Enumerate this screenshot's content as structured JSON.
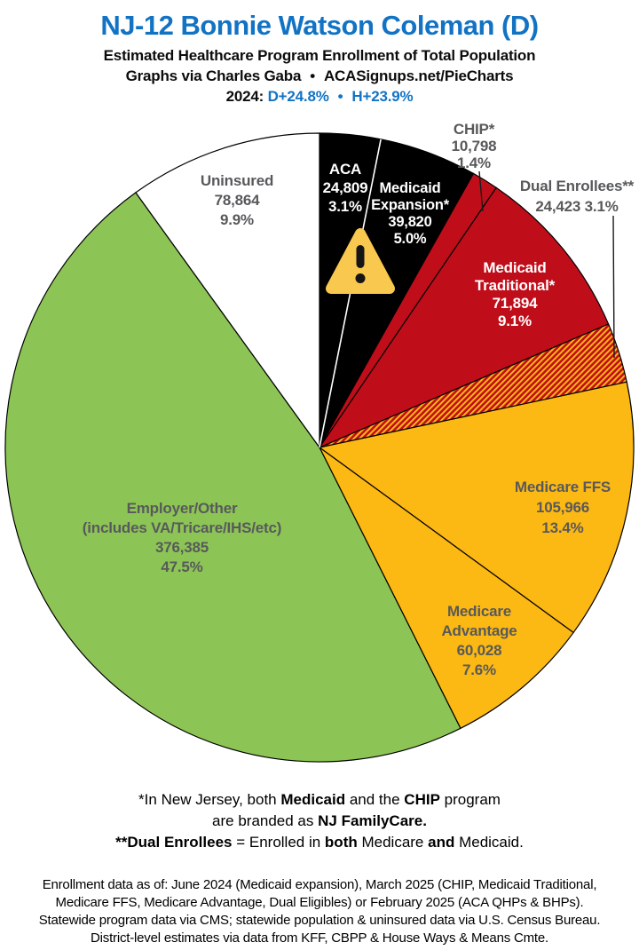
{
  "header": {
    "title": "NJ-12 Bonnie Watson Coleman (D)",
    "subtitle": "Estimated Healthcare Program Enrollment of Total Population",
    "credit": "Graphs via Charles Gaba",
    "credit_separator": "•",
    "credit_site": "ACASignups.net/PieCharts",
    "year_label": "2024:",
    "margin_d": "D+24.8%",
    "margin_separator": "•",
    "margin_h": "H+23.9%"
  },
  "colors": {
    "accent_blue": "#1273C4",
    "slice_black": "#000000",
    "slice_red": "#C00D1A",
    "slice_gold": "#FCB813",
    "slice_green": "#8CC556",
    "slice_white": "#FFFFFF",
    "label_gray": "#58595B",
    "warning_yellow": "#F9C84E"
  },
  "icons": {
    "warning": "warning-triangle-icon"
  },
  "chart_data": {
    "type": "pie",
    "title": "Estimated Healthcare Program Enrollment of Total Population",
    "direction": "clockwise",
    "start_angle_deg": 0,
    "total": 792987,
    "slices": [
      {
        "name": "ACA",
        "value": 24809,
        "pct": "3.1%",
        "color": "#000000",
        "display_lines": [
          "ACA",
          "24,809",
          "3.1%"
        ]
      },
      {
        "name": "Medicaid Expansion*",
        "value": 39820,
        "pct": "5.0%",
        "color": "#000000",
        "display_lines": [
          "Medicaid",
          "Expansion*",
          "39,820",
          "5.0%"
        ]
      },
      {
        "name": "CHIP*",
        "value": 10798,
        "pct": "1.4%",
        "color": "#C00D1A",
        "display_lines": [
          "CHIP*",
          "10,798",
          "1.4%"
        ]
      },
      {
        "name": "Medicaid Traditional*",
        "value": 71894,
        "pct": "9.1%",
        "color": "#C00D1A",
        "display_lines": [
          "Medicaid",
          "Traditional*",
          "71,894",
          "9.1%"
        ]
      },
      {
        "name": "Dual Enrollees**",
        "value": 24423,
        "pct": "3.1%",
        "color": "hatch",
        "display_lines": [
          "Dual Enrollees**",
          "24,423 3.1%"
        ]
      },
      {
        "name": "Medicare FFS",
        "value": 105966,
        "pct": "13.4%",
        "color": "#FCB813",
        "display_lines": [
          "Medicare FFS",
          "105,966",
          "13.4%"
        ]
      },
      {
        "name": "Medicare Advantage",
        "value": 60028,
        "pct": "7.6%",
        "color": "#FCB813",
        "display_lines": [
          "Medicare",
          "Advantage",
          "60,028",
          "7.6%"
        ]
      },
      {
        "name": "Employer/Other (includes VA/Tricare/IHS/etc)",
        "value": 376385,
        "pct": "47.5%",
        "color": "#8CC556",
        "display_lines": [
          "Employer/Other",
          "(includes VA/Tricare/IHS/etc)",
          "376,385",
          "47.5%"
        ]
      },
      {
        "name": "Uninsured",
        "value": 78864,
        "pct": "9.9%",
        "color": "#FFFFFF",
        "display_lines": [
          "Uninsured",
          "78,864",
          "9.9%"
        ]
      }
    ]
  },
  "footnotes": {
    "lines": [
      [
        {
          "t": "*In New Jersey, both ",
          "b": 0
        },
        {
          "t": "Medicaid",
          "b": 1
        },
        {
          "t": " and the ",
          "b": 0
        },
        {
          "t": "CHIP",
          "b": 1
        },
        {
          "t": " program",
          "b": 0
        }
      ],
      [
        {
          "t": "are branded as ",
          "b": 0
        },
        {
          "t": "NJ FamilyCare.",
          "b": 1
        }
      ],
      [
        {
          "t": "**Dual Enrollees",
          "b": 1
        },
        {
          "t": " = Enrolled in ",
          "b": 0
        },
        {
          "t": "both",
          "b": 1
        },
        {
          "t": " Medicare ",
          "b": 0
        },
        {
          "t": "and",
          "b": 1
        },
        {
          "t": " Medicaid.",
          "b": 0
        }
      ]
    ]
  },
  "sources": {
    "lines": [
      "Enrollment data as of: June 2024 (Medicaid expansion), March 2025 (CHIP, Medicaid Traditional,",
      "Medicare FFS, Medicare Advantage, Dual Eligibles) or February 2025 (ACA QHPs & BHPs).",
      "Statewide program data via CMS; statewide population & uninsured data via U.S. Census Bureau.",
      "District-level estimates via data from KFF, CBPP & House Ways & Means Cmte."
    ]
  }
}
